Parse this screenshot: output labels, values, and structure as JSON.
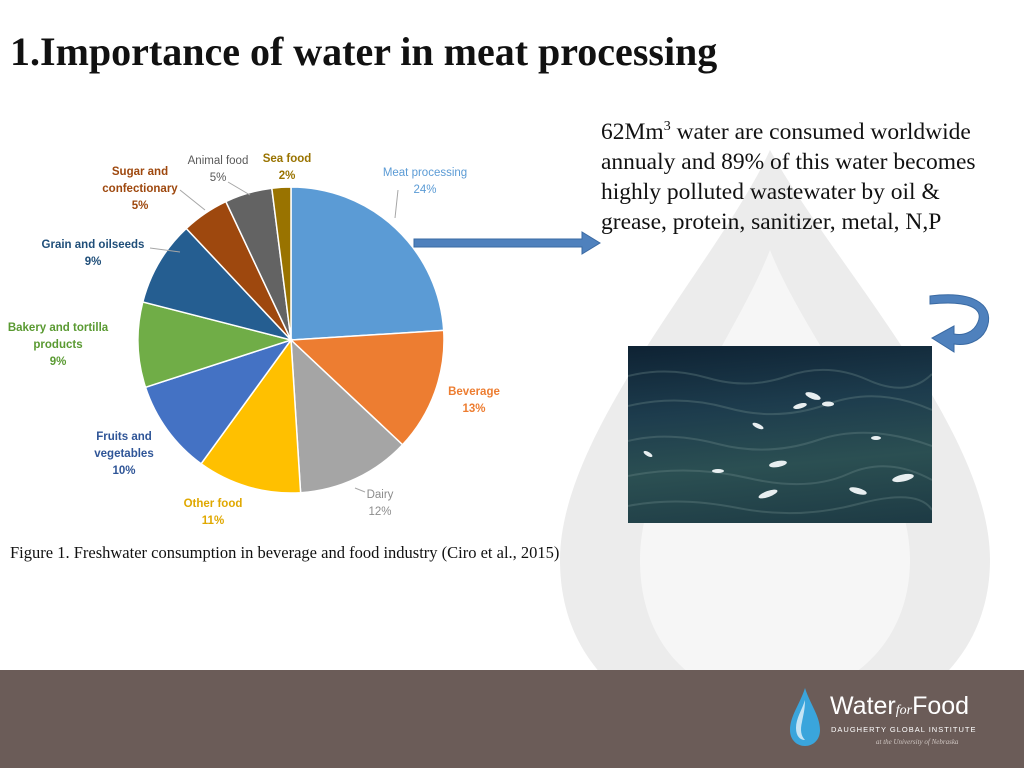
{
  "slide": {
    "title": "1.Importance of water in meat processing",
    "caption": "Figure 1. Freshwater consumption in beverage and food industry (Ciro et al., 2015)",
    "note_lead": "62Mm",
    "note_sup": "3",
    "note_rest": " water are consumed worldwide annualy and 89% of this water becomes highly polluted wastewater by oil & grease, protein, sanitizer, metal, N,P"
  },
  "chart_data": {
    "type": "pie",
    "title": "",
    "slices": [
      {
        "name": "Meat processing",
        "label": "Meat processing",
        "pct_label": "24%",
        "value": 24,
        "color": "#5b9bd5",
        "label_color": "#5b9bd5"
      },
      {
        "name": "Beverage",
        "label": "Beverage",
        "pct_label": "13%",
        "value": 13,
        "color": "#ed7d31",
        "label_color": "#ed7d31"
      },
      {
        "name": "Dairy",
        "label": "Dairy",
        "pct_label": "12%",
        "value": 12,
        "color": "#a5a5a5",
        "label_color": "#8c8c8c"
      },
      {
        "name": "Other food",
        "label": "Other food",
        "pct_label": "11%",
        "value": 11,
        "color": "#ffc000",
        "label_color": "#e0a800"
      },
      {
        "name": "Fruits and vegetables",
        "label": "Fruits and vegetables",
        "pct_label": "10%",
        "value": 10,
        "color": "#4472c4",
        "label_color": "#2f5597"
      },
      {
        "name": "Bakery and tortilla products",
        "label": "Bakery and tortilla products",
        "pct_label": "9%",
        "value": 9,
        "color": "#70ad47",
        "label_color": "#5a9a32"
      },
      {
        "name": "Grain and oilseeds",
        "label": "Grain and oilseeds",
        "pct_label": "9%",
        "value": 9,
        "color": "#255e91",
        "label_color": "#1f4e79"
      },
      {
        "name": "Sugar and confectionary",
        "label": "Sugar and confectionary",
        "pct_label": "5%",
        "value": 5,
        "color": "#9e480e",
        "label_color": "#9e480e"
      },
      {
        "name": "Animal food",
        "label": "Animal food",
        "pct_label": "5%",
        "value": 5,
        "color": "#636363",
        "label_color": "#595959"
      },
      {
        "name": "Sea food",
        "label": "Sea food",
        "pct_label": "2%",
        "value": 2,
        "color": "#997300",
        "label_color": "#997300"
      }
    ],
    "legend": "none"
  },
  "footer": {
    "brand_water": "Water",
    "brand_for": "for",
    "brand_food": "Food",
    "institute": "DAUGHERTY GLOBAL INSTITUTE",
    "tagline": "at the University of Nebraska"
  },
  "colors": {
    "footer_bg": "#6b5c58",
    "arrow": "#4f81bd",
    "watermark": "#d9d9d9"
  }
}
